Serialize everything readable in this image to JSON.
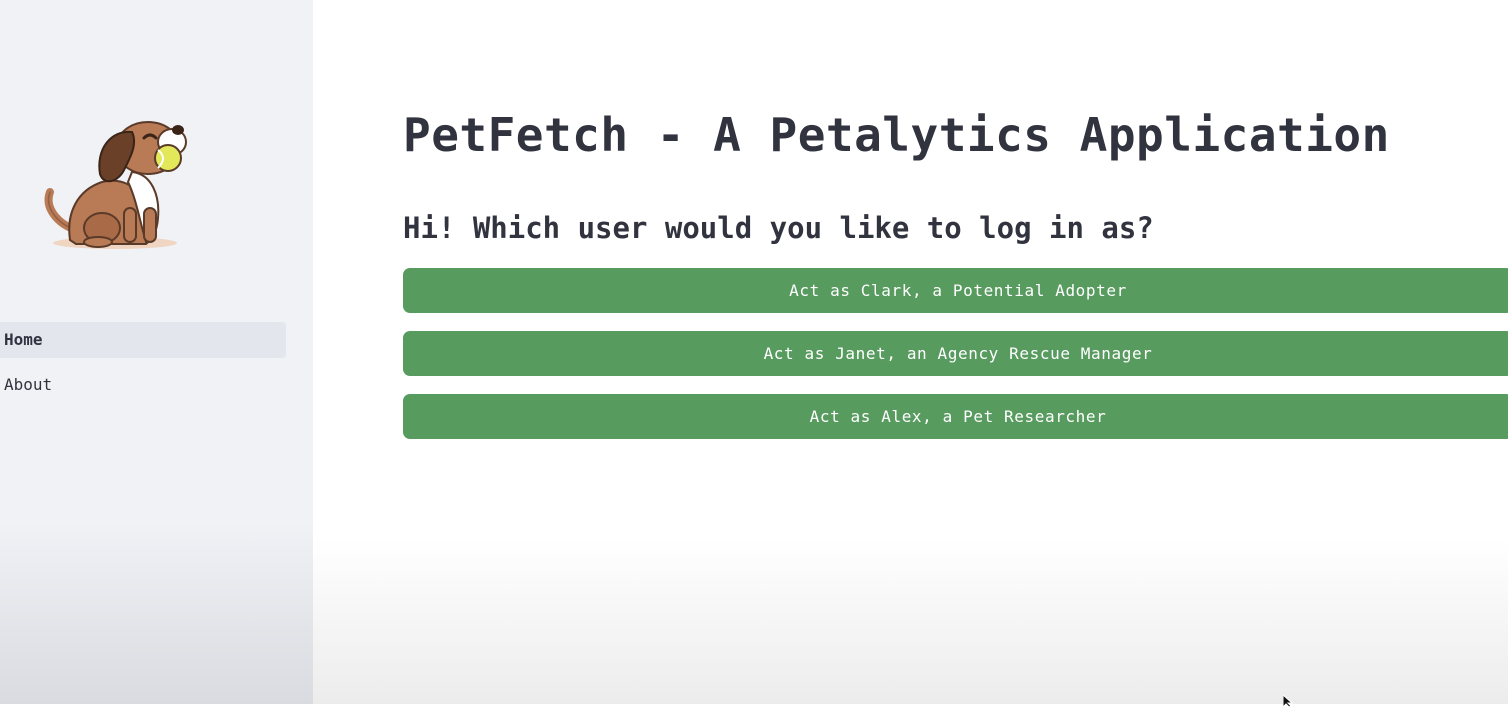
{
  "sidebar": {
    "logo_icon": "dog-mascot-icon",
    "nav_items": [
      {
        "label": "Home",
        "active": true
      },
      {
        "label": "About",
        "active": false
      }
    ]
  },
  "main": {
    "title": "PetFetch - A Petalytics Application",
    "subtitle": "Hi! Which user would you like to log in as?",
    "buttons": [
      {
        "label": "Act as Clark, a Potential Adopter"
      },
      {
        "label": "Act as Janet, an Agency Rescue Manager"
      },
      {
        "label": "Act as Alex, a Pet Researcher"
      }
    ]
  },
  "colors": {
    "sidebar_bg": "#f0f2f6",
    "button_bg": "#579b5f",
    "text": "#31333f"
  }
}
